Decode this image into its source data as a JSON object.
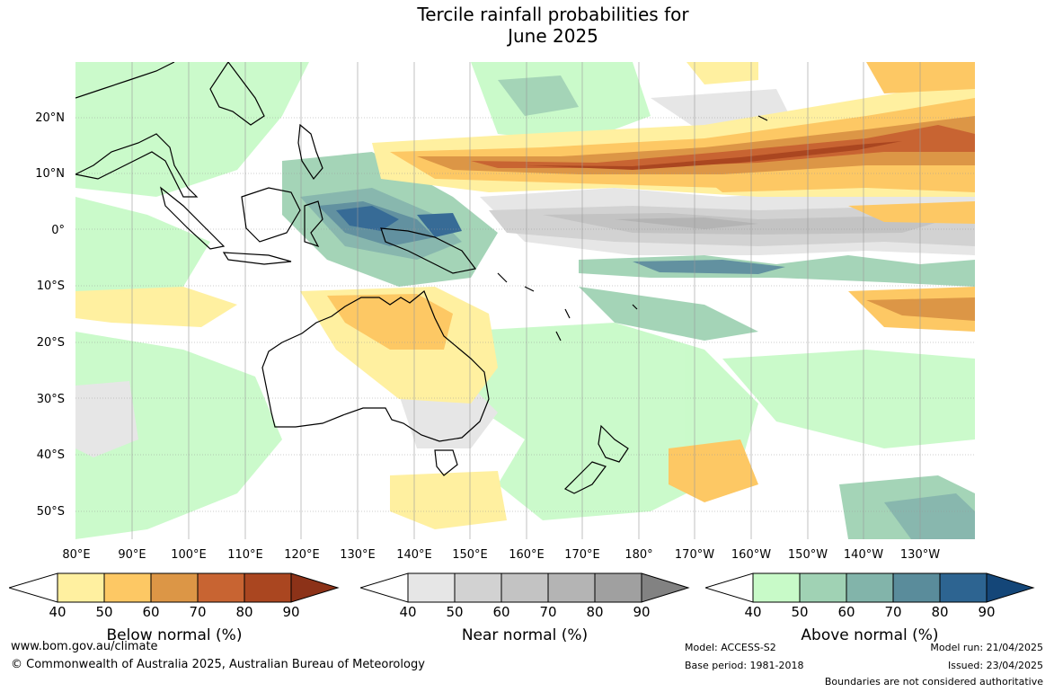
{
  "title": {
    "line1": "Tercile rainfall probabilities for",
    "line2": "June 2025"
  },
  "lat_labels": [
    "20°N",
    "10°N",
    "0°",
    "10°S",
    "20°S",
    "30°S",
    "40°S",
    "50°S"
  ],
  "lon_labels": [
    "80°E",
    "90°E",
    "100°E",
    "110°E",
    "120°E",
    "130°E",
    "140°E",
    "150°E",
    "160°E",
    "170°E",
    "180°",
    "170°W",
    "160°W",
    "150°W",
    "140°W",
    "130°W"
  ],
  "legends": {
    "below": {
      "title": "Below normal (%)",
      "ticks": [
        "40",
        "50",
        "60",
        "70",
        "80",
        "90"
      ],
      "colors": [
        "#fff0a0",
        "#fdc864",
        "#dc9646",
        "#c86432",
        "#aa4620",
        "#8c3218"
      ]
    },
    "near": {
      "title": "Near normal (%)",
      "ticks": [
        "40",
        "50",
        "60",
        "70",
        "80",
        "90"
      ],
      "colors": [
        "#e6e6e6",
        "#d2d2d2",
        "#c3c3c3",
        "#b4b4b4",
        "#a0a0a0",
        "#828282"
      ]
    },
    "above": {
      "title": "Above normal (%)",
      "ticks": [
        "40",
        "50",
        "60",
        "70",
        "80",
        "90"
      ],
      "colors": [
        "#c8fac8",
        "#a0d2b4",
        "#82b4aa",
        "#5a8c9b",
        "#2d6491",
        "#144678"
      ]
    }
  },
  "footer": {
    "website": "www.bom.gov.au/climate",
    "copyright": "© Commonwealth of Australia 2025, Australian Bureau of Meteorology",
    "model": "Model: ACCESS-S2",
    "base_period": "Base period: 1981-2018",
    "model_run": "Model run: 21/04/2025",
    "issued": "Issued: 23/04/2025",
    "disclaimer": "Boundaries are not considered authoritative"
  }
}
